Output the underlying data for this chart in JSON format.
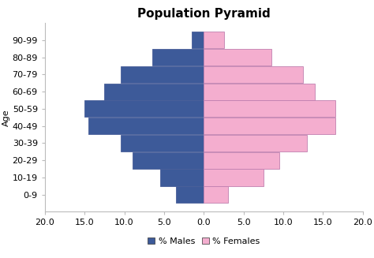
{
  "title": "Population Pyramid",
  "age_groups": [
    "0-9",
    "10-19",
    "20-29",
    "30-39",
    "40-49",
    "50-59",
    "60-69",
    "70-79",
    "80-89",
    "90-99"
  ],
  "males": [
    3.5,
    5.5,
    9.0,
    10.5,
    14.5,
    15.0,
    12.5,
    10.5,
    6.5,
    1.5
  ],
  "females": [
    3.0,
    7.5,
    9.5,
    13.0,
    16.5,
    16.5,
    14.0,
    12.5,
    8.5,
    2.5
  ],
  "male_color": "#3D5A99",
  "female_color": "#F4AECF",
  "male_edge_color": "#4A5F99",
  "female_edge_color": "#C080B0",
  "xlim": [
    -20,
    20
  ],
  "xticks": [
    -20,
    -15,
    -10,
    -5,
    0,
    5,
    10,
    15,
    20
  ],
  "xtick_labels": [
    "20.0",
    "15.0",
    "10.0",
    "5.0",
    "0.0",
    "5.0",
    "10.0",
    "15.0",
    "20.0"
  ],
  "ylabel": "Age",
  "background_color": "#FFFFFF",
  "title_fontsize": 11,
  "axis_fontsize": 8,
  "tick_fontsize": 8,
  "legend_labels": [
    "% Males",
    "% Females"
  ]
}
